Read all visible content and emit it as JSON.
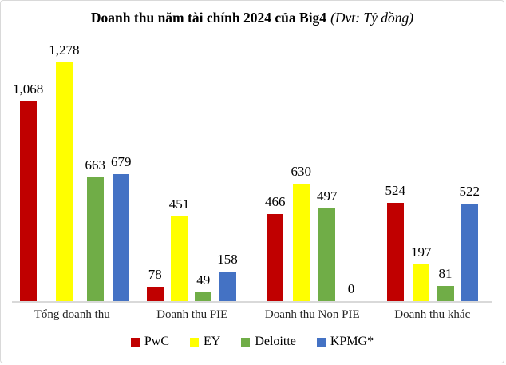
{
  "title": {
    "main": "Doanh thu năm tài chính 2024 của Big4",
    "unit": "(Đvt: Tỷ đồng)"
  },
  "colors": {
    "pwc": "#C00000",
    "ey": "#FFFF00",
    "deloitte": "#70AD47",
    "kpmg": "#4472C4",
    "baseline": "#d9d9d9",
    "border": "#d9d9d9"
  },
  "chart_data": {
    "type": "bar",
    "title": "Doanh thu năm tài chính 2024 của Big4 (Đvt: Tỷ đồng)",
    "categories": [
      "Tổng doanh thu",
      "Doanh thu PIE",
      "Doanh thu Non PIE",
      "Doanh thu khác"
    ],
    "series": [
      {
        "name": "PwC",
        "color": "#C00000",
        "values": [
          1068,
          78,
          466,
          524
        ],
        "labels": [
          "1,068",
          "78",
          "466",
          "524"
        ]
      },
      {
        "name": "EY",
        "color": "#FFFF00",
        "values": [
          1278,
          451,
          630,
          197
        ],
        "labels": [
          "1,278",
          "451",
          "630",
          "197"
        ]
      },
      {
        "name": "Deloitte",
        "color": "#70AD47",
        "values": [
          663,
          49,
          497,
          81
        ],
        "labels": [
          "663",
          "49",
          "497",
          "81"
        ]
      },
      {
        "name": "KPMG*",
        "color": "#4472C4",
        "values": [
          679,
          158,
          0,
          522
        ],
        "labels": [
          "679",
          "158",
          "0",
          "522"
        ]
      }
    ],
    "xlabel": "",
    "ylabel": "",
    "ylim": [
      0,
      1278
    ],
    "grid": false,
    "y_axis_visible": false,
    "data_labels": true,
    "legend_position": "bottom"
  }
}
